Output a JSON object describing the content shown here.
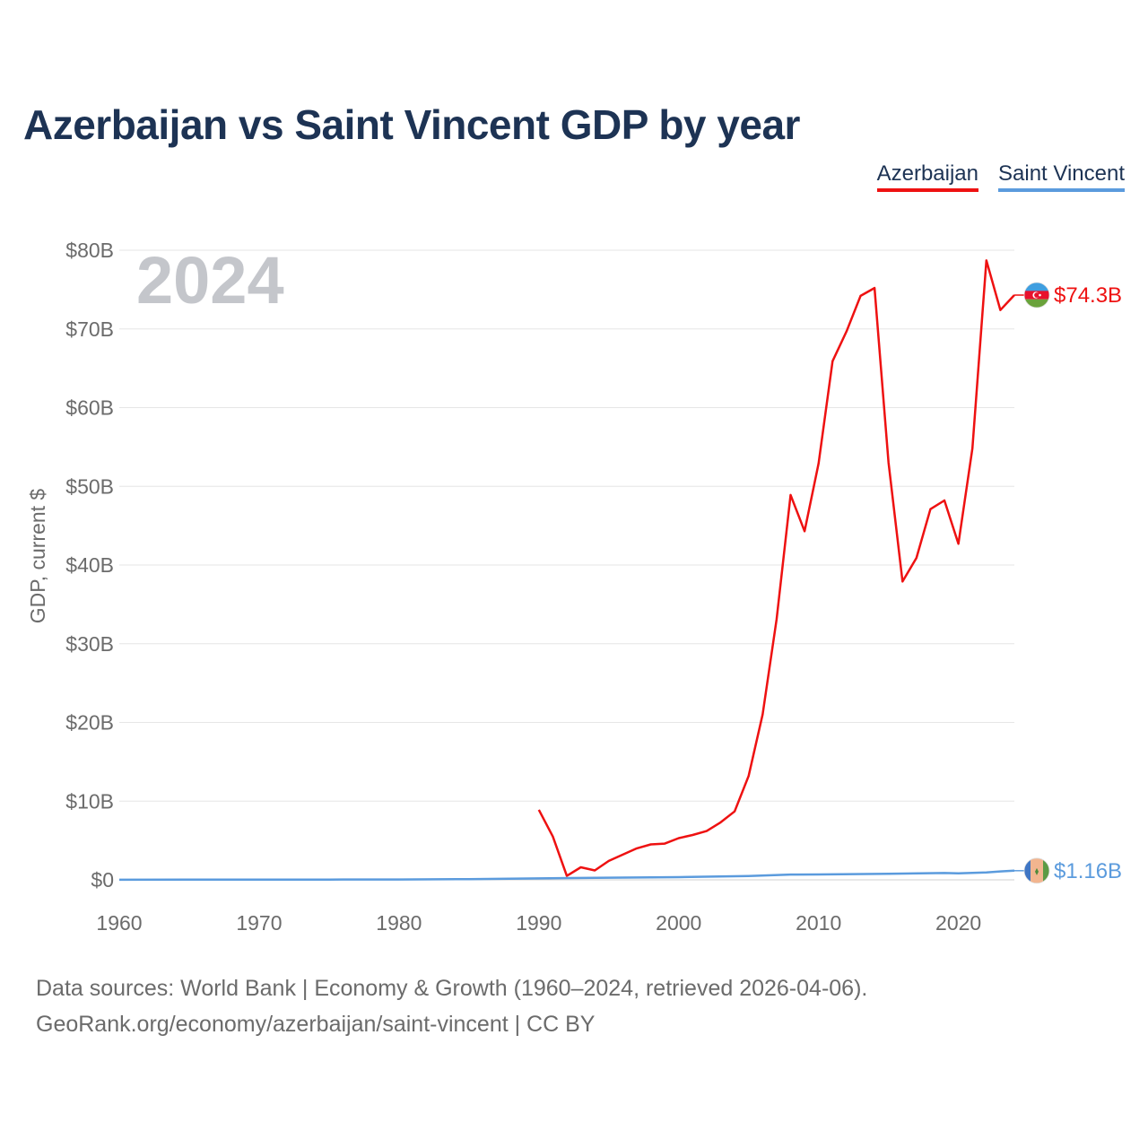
{
  "title": "Azerbaijan vs Saint Vincent GDP by year",
  "legend": {
    "azerbaijan": "Azerbaijan",
    "saint_vincent": "Saint Vincent"
  },
  "chart_data": {
    "type": "line",
    "title": "Azerbaijan vs Saint Vincent GDP by year",
    "ylabel": "GDP, current $",
    "xlabel": "",
    "year_label": "2024",
    "xlim": [
      1960,
      2024
    ],
    "ylim": [
      0,
      80
    ],
    "y_unit": "billions USD",
    "x_ticks": [
      "1960",
      "1970",
      "1980",
      "1990",
      "2000",
      "2010",
      "2020"
    ],
    "y_ticks": [
      "$0",
      "$10B",
      "$20B",
      "$30B",
      "$40B",
      "$50B",
      "$60B",
      "$70B",
      "$80B"
    ],
    "series": [
      {
        "name": "Azerbaijan",
        "color": "#ee1111",
        "end_label": "$74.3B",
        "x": [
          1990,
          1991,
          1992,
          1993,
          1994,
          1995,
          1996,
          1997,
          1998,
          1999,
          2000,
          2001,
          2002,
          2003,
          2004,
          2005,
          2006,
          2007,
          2008,
          2009,
          2010,
          2011,
          2012,
          2013,
          2014,
          2015,
          2016,
          2017,
          2018,
          2019,
          2020,
          2021,
          2022,
          2023,
          2024
        ],
        "values": [
          8.9,
          5.5,
          0.5,
          1.6,
          1.2,
          2.4,
          3.2,
          4.0,
          4.5,
          4.6,
          5.3,
          5.7,
          6.2,
          7.3,
          8.7,
          13.2,
          21.0,
          33.1,
          48.9,
          44.3,
          52.9,
          65.9,
          69.7,
          74.2,
          75.2,
          53.0,
          37.9,
          40.9,
          47.1,
          48.2,
          42.7,
          54.8,
          78.7,
          72.4,
          74.3
        ]
      },
      {
        "name": "Saint Vincent",
        "color": "#5b9bdd",
        "end_label": "$1.16B",
        "x": [
          1960,
          1965,
          1970,
          1975,
          1980,
          1985,
          1990,
          1995,
          2000,
          2005,
          2008,
          2010,
          2015,
          2019,
          2020,
          2021,
          2022,
          2023,
          2024
        ],
        "values": [
          0.01,
          0.02,
          0.02,
          0.03,
          0.05,
          0.09,
          0.18,
          0.27,
          0.34,
          0.48,
          0.67,
          0.68,
          0.76,
          0.87,
          0.83,
          0.88,
          0.95,
          1.07,
          1.16
        ]
      }
    ]
  },
  "footer": {
    "line1": "Data sources: World Bank | Economy & Growth (1960–2024, retrieved 2026-04-06).",
    "line2": "GeoRank.org/economy/azerbaijan/saint-vincent | CC BY"
  }
}
